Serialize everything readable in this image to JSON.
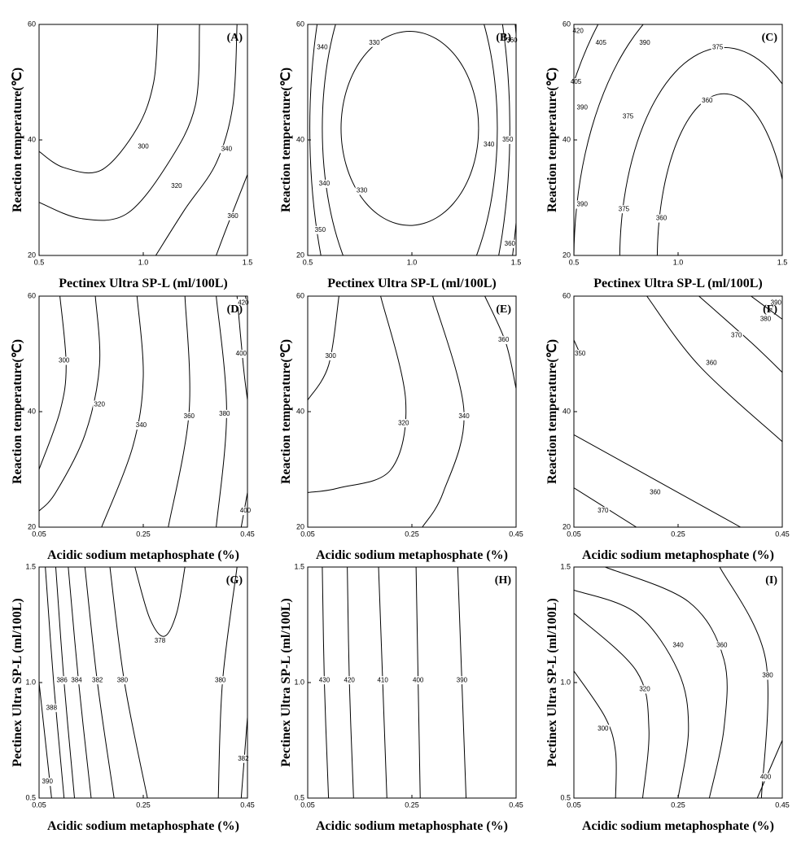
{
  "chart_data": [
    {
      "type": "contour",
      "label": "(A)",
      "xlabel": "Pectinex Ultra SP-L (ml/100L)",
      "ylabel": "Reaction temperature(℃)",
      "xlim": [
        0.5,
        1.5
      ],
      "xticks": [
        0.5,
        {
          "value": 1,
          "label": "1.0"
        },
        1.5
      ],
      "ylim": [
        20,
        60
      ],
      "yticks": [
        20,
        40,
        60
      ],
      "levels": [
        300,
        320,
        340,
        360
      ]
    },
    {
      "type": "contour",
      "label": "(B)",
      "xlabel": "Pectinex Ultra SP-L (ml/100L)",
      "ylabel": "Reaction temperature(℃)",
      "xlim": [
        0.5,
        1.5
      ],
      "xticks": [
        0.5,
        {
          "value": 1,
          "label": "1.0"
        },
        1.5
      ],
      "ylim": [
        20,
        60
      ],
      "yticks": [
        20,
        40,
        60
      ],
      "levels": [
        330,
        340,
        350,
        360
      ]
    },
    {
      "type": "contour",
      "label": "(C)",
      "xlabel": "Pectinex Ultra SP-L (ml/100L)",
      "ylabel": "Reaction temperature(℃)",
      "xlim": [
        0.5,
        1.5
      ],
      "xticks": [
        0.5,
        {
          "value": 1,
          "label": "1.0"
        },
        1.5
      ],
      "ylim": [
        20,
        60
      ],
      "yticks": [
        20,
        40,
        60
      ],
      "levels": [
        360,
        375,
        390,
        405,
        420
      ]
    },
    {
      "type": "contour",
      "label": "(D)",
      "xlabel": "Acidic sodium metaphosphate (%)",
      "ylabel": "Reaction temperature(℃)",
      "xlim": [
        0.05,
        0.45
      ],
      "xticks": [
        0.05,
        0.25,
        0.45
      ],
      "ylim": [
        20,
        60
      ],
      "yticks": [
        20,
        40,
        60
      ],
      "levels": [
        300,
        320,
        340,
        360,
        380,
        400,
        420
      ]
    },
    {
      "type": "contour",
      "label": "(E)",
      "xlabel": "Acidic sodium metaphosphate (%)",
      "ylabel": "Reaction temperature(℃)",
      "xlim": [
        0.05,
        0.45
      ],
      "xticks": [
        0.05,
        0.25,
        0.45
      ],
      "ylim": [
        20,
        60
      ],
      "yticks": [
        20,
        40,
        60
      ],
      "levels": [
        300,
        320,
        340,
        360
      ]
    },
    {
      "type": "contour",
      "label": "(F)",
      "xlabel": "Acidic sodium metaphosphate (%)",
      "ylabel": "Reaction temperature(℃)",
      "xlim": [
        0.05,
        0.45
      ],
      "xticks": [
        0.05,
        0.25,
        0.45
      ],
      "ylim": [
        20,
        60
      ],
      "yticks": [
        20,
        40,
        60
      ],
      "levels": [
        350,
        360,
        370,
        380,
        390
      ]
    },
    {
      "type": "contour",
      "label": "(G)",
      "xlabel": "Acidic sodium metaphosphate (%)",
      "ylabel": "Pectinex Ultra SP-L (ml/100L)",
      "xlim": [
        0.05,
        0.45
      ],
      "xticks": [
        0.05,
        0.25,
        0.45
      ],
      "ylim": [
        0.5,
        1.5
      ],
      "yticks": [
        0.5,
        {
          "value": 1,
          "label": "1.0"
        },
        1.5
      ],
      "levels": [
        378,
        380,
        382,
        384,
        386,
        388,
        390
      ]
    },
    {
      "type": "contour",
      "label": "(H)",
      "xlabel": "Acidic sodium metaphosphate (%)",
      "ylabel": "Pectinex Ultra SP-L (ml/100L)",
      "xlim": [
        0.05,
        0.45
      ],
      "xticks": [
        0.05,
        0.25,
        0.45
      ],
      "ylim": [
        0.5,
        1.5
      ],
      "yticks": [
        0.5,
        {
          "value": 1,
          "label": "1.0"
        },
        1.5
      ],
      "levels": [
        390,
        400,
        410,
        420,
        430
      ]
    },
    {
      "type": "contour",
      "label": "(I)",
      "xlabel": "Acidic sodium metaphosphate (%)",
      "ylabel": "Pectinex Ultra SP-L (ml/100L)",
      "xlim": [
        0.05,
        0.45
      ],
      "xticks": [
        0.05,
        0.25,
        0.45
      ],
      "ylim": [
        0.5,
        1.5
      ],
      "yticks": [
        0.5,
        {
          "value": 1,
          "label": "1.0"
        },
        1.5
      ],
      "levels": [
        300,
        320,
        340,
        360,
        380,
        400
      ]
    }
  ]
}
